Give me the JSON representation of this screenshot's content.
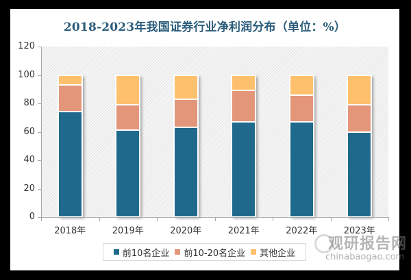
{
  "chart_data": {
    "type": "bar",
    "stacked": true,
    "title": "2018-2023年我国证券行业净利润分布（单位：%）",
    "xlabel": "",
    "ylabel": "",
    "ylim": [
      0,
      120
    ],
    "yticks": [
      0,
      20,
      40,
      60,
      80,
      100,
      120
    ],
    "categories": [
      "2018年",
      "2019年",
      "2020年",
      "2021年",
      "2022年",
      "2023年"
    ],
    "series": [
      {
        "name": "前10名企业",
        "color": "#1f6a8c",
        "values": [
          74,
          61,
          63,
          67,
          67,
          60
        ]
      },
      {
        "name": "前10-20名企业",
        "color": "#e4967a",
        "values": [
          19,
          18,
          20,
          22,
          19,
          19
        ]
      },
      {
        "name": "其他企业",
        "color": "#ffc06e",
        "values": [
          7,
          21,
          17,
          11,
          14,
          21
        ]
      }
    ],
    "legend_position": "bottom",
    "grid": false
  },
  "yaxis": {
    "labels": [
      "120",
      "100",
      "80",
      "60",
      "40",
      "20",
      "0"
    ]
  },
  "xaxis": {
    "labels": [
      "2018年",
      "2019年",
      "2020年",
      "2021年",
      "2022年",
      "2023年"
    ]
  },
  "legend": {
    "items": [
      {
        "label": "前10名企业",
        "color": "#1f6a8c"
      },
      {
        "label": "前10-20名企业",
        "color": "#e4967a"
      },
      {
        "label": "其他企业",
        "color": "#ffc06e"
      }
    ]
  },
  "watermark": {
    "cn": "观研报告网",
    "en": "chinabaogao.com"
  }
}
